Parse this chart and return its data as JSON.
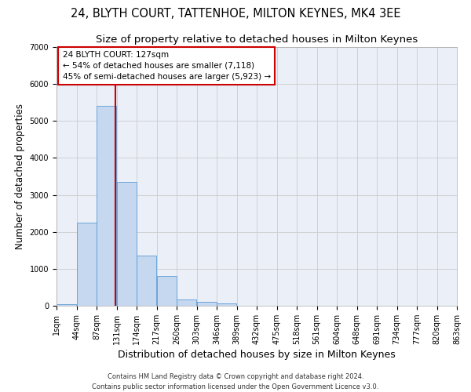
{
  "title": "24, BLYTH COURT, TATTENHOE, MILTON KEYNES, MK4 3EE",
  "subtitle": "Size of property relative to detached houses in Milton Keynes",
  "xlabel": "Distribution of detached houses by size in Milton Keynes",
  "ylabel": "Number of detached properties",
  "footer_line1": "Contains HM Land Registry data © Crown copyright and database right 2024.",
  "footer_line2": "Contains public sector information licensed under the Open Government Licence v3.0.",
  "property_label": "24 BLYTH COURT: 127sqm",
  "annotation_line1": "← 54% of detached houses are smaller (7,118)",
  "annotation_line2": "45% of semi-detached houses are larger (5,923) →",
  "bar_values": [
    50,
    2250,
    5400,
    3350,
    1350,
    800,
    175,
    100,
    60,
    10,
    2,
    1,
    0,
    0,
    0,
    0,
    0,
    0,
    0,
    0
  ],
  "bin_labels": [
    "1sqm",
    "44sqm",
    "87sqm",
    "131sqm",
    "174sqm",
    "217sqm",
    "260sqm",
    "303sqm",
    "346sqm",
    "389sqm",
    "432sqm",
    "475sqm",
    "518sqm",
    "561sqm",
    "604sqm",
    "648sqm",
    "691sqm",
    "734sqm",
    "777sqm",
    "820sqm",
    "863sqm"
  ],
  "bar_color": "#c5d8f0",
  "bar_edge_color": "#5b9bd5",
  "vline_color": "#cc0000",
  "vline_x": 127,
  "annotation_box_color": "#cc0000",
  "ylim": [
    0,
    7000
  ],
  "yticks": [
    0,
    1000,
    2000,
    3000,
    4000,
    5000,
    6000,
    7000
  ],
  "grid_color": "#cccccc",
  "bg_color": "#eaeff8",
  "title_fontsize": 10.5,
  "subtitle_fontsize": 9.5,
  "xlabel_fontsize": 9,
  "ylabel_fontsize": 8.5,
  "tick_fontsize": 7,
  "annotation_fontsize": 7.5,
  "footer_fontsize": 6
}
